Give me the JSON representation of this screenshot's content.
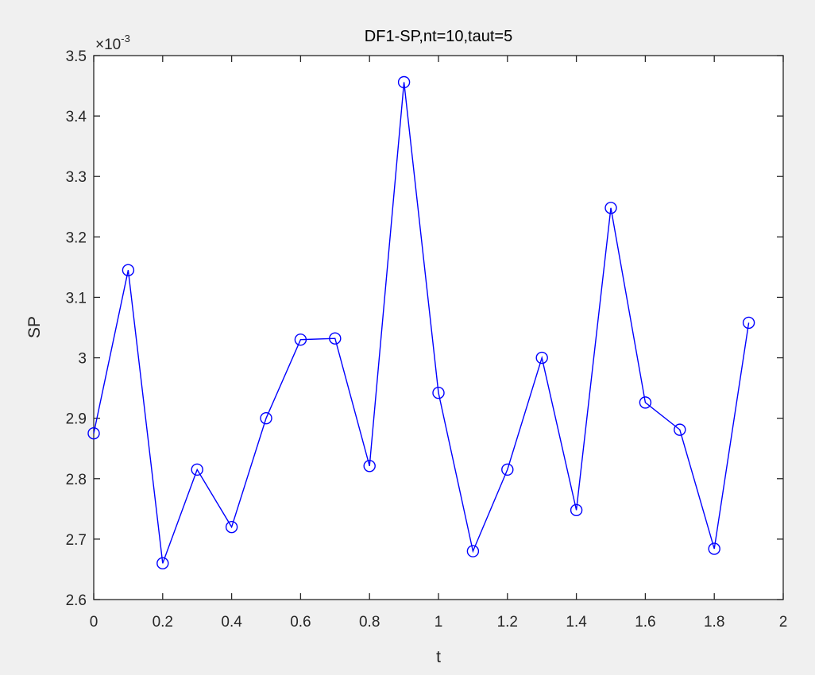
{
  "chart_data": {
    "type": "line",
    "title": "DF1-SP,nt=10,taut=5",
    "xlabel": "t",
    "ylabel": "SP",
    "y_multiplier": "×10",
    "y_multiplier_exponent": "-3",
    "xlim": [
      0,
      2
    ],
    "ylim": [
      2.6,
      3.5
    ],
    "x_ticks": [
      "0",
      "0.2",
      "0.4",
      "0.6",
      "0.8",
      "1",
      "1.2",
      "1.4",
      "1.6",
      "1.8",
      "2"
    ],
    "y_ticks": [
      "2.6",
      "2.7",
      "2.8",
      "2.9",
      "3",
      "3.1",
      "3.2",
      "3.3",
      "3.4",
      "3.5"
    ],
    "x_tick_values": [
      0,
      0.2,
      0.4,
      0.6,
      0.8,
      1.0,
      1.2,
      1.4,
      1.6,
      1.8,
      2.0
    ],
    "y_tick_values": [
      2.6,
      2.7,
      2.8,
      2.9,
      3.0,
      3.1,
      3.2,
      3.3,
      3.4,
      3.5
    ],
    "grid": false,
    "marker": "circle",
    "series": [
      {
        "color": "#0000ff",
        "x": [
          0,
          0.1,
          0.2,
          0.3,
          0.4,
          0.5,
          0.6,
          0.7,
          0.8,
          0.9,
          1.0,
          1.1,
          1.2,
          1.3,
          1.4,
          1.5,
          1.6,
          1.7,
          1.8,
          1.9
        ],
        "y": [
          2.875,
          3.145,
          2.66,
          2.815,
          2.72,
          2.9,
          3.03,
          3.032,
          2.821,
          3.456,
          2.942,
          2.68,
          2.815,
          3.0,
          2.748,
          3.248,
          2.926,
          2.881,
          2.684,
          3.058
        ]
      }
    ]
  }
}
